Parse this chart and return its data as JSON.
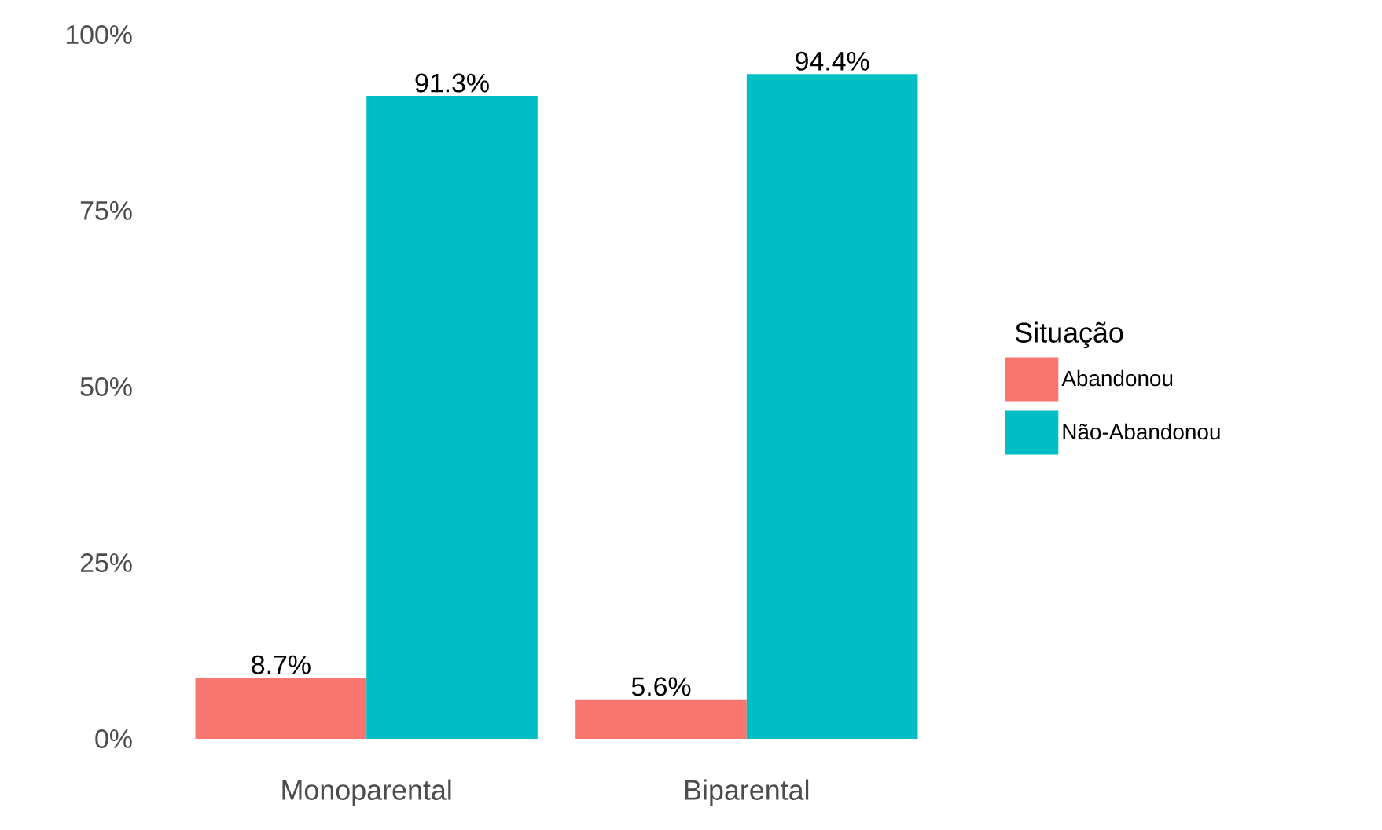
{
  "chart_data": {
    "type": "bar",
    "categories": [
      "Monoparental",
      "Biparental"
    ],
    "series": [
      {
        "name": "Abandonou",
        "color": "#f8766d",
        "values": [
          8.7,
          5.6
        ],
        "value_labels": [
          "8.7%",
          "5.6%"
        ]
      },
      {
        "name": "Não-Abandonou",
        "color": "#00bfc4",
        "values": [
          91.3,
          94.4
        ],
        "value_labels": [
          "91.3%",
          "94.4%"
        ]
      }
    ],
    "legend_title": "Situação",
    "legend": "right",
    "ylim": [
      0,
      100
    ],
    "yticks": [
      {
        "value": 0,
        "label": "0%"
      },
      {
        "value": 25,
        "label": "25%"
      },
      {
        "value": 50,
        "label": "50%"
      },
      {
        "value": 75,
        "label": "75%"
      },
      {
        "value": 100,
        "label": "100%"
      }
    ]
  }
}
